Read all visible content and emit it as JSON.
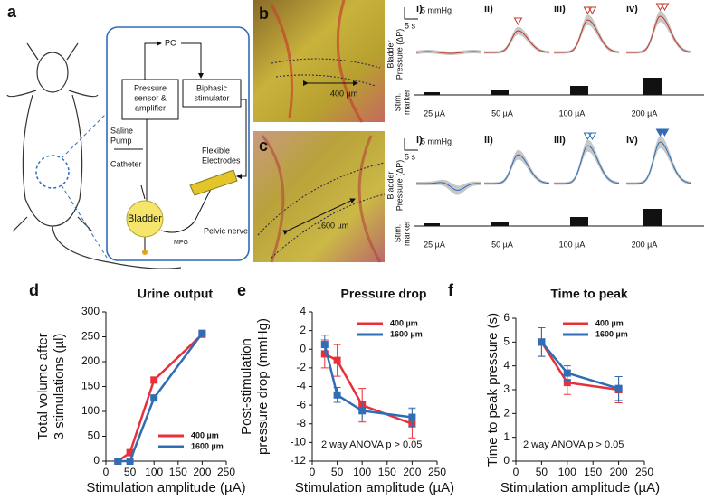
{
  "figure": {
    "panel_a": {
      "label": "a",
      "pc": "PC",
      "sensor": [
        "Pressure",
        "sensor &",
        "amplifier"
      ],
      "stimulator": [
        "Biphasic",
        "stimulator"
      ],
      "pump": [
        "Saline",
        "Pump"
      ],
      "catheter": "Catheter",
      "bladder": "Bladder",
      "electrodes": [
        "Flexible",
        "Electrodes"
      ],
      "nerve": "Pelvic nerve",
      "mpg": "MPG"
    },
    "panel_b": {
      "label": "b",
      "scale": "400 µm"
    },
    "panel_c": {
      "label": "c",
      "scale": "1600  µm"
    },
    "traces": [
      {
        "color": "#c0392b",
        "columns": [
          "i)",
          "ii)",
          "iii)",
          "iv)"
        ],
        "scale_y": "5 mmHg",
        "scale_x": "5 s",
        "ylabel": [
          "Bladder",
          "Pressure (ΔP)"
        ],
        "marker_label": [
          "Stim.",
          "marker"
        ],
        "amplitudes": [
          "25 µA",
          "50 µA",
          "100 µA",
          "200 µA"
        ]
      },
      {
        "color": "#2f6db5",
        "columns": [
          "i)",
          "ii)",
          "iii)",
          "iv)"
        ],
        "scale_y": "5 mmHg",
        "scale_x": "5 s",
        "ylabel": [
          "Bladder",
          "Pressure (ΔP)"
        ],
        "marker_label": [
          "Stim.",
          "marker"
        ],
        "amplitudes": [
          "25 µA",
          "50 µA",
          "100 µA",
          "200 µA"
        ]
      }
    ]
  },
  "chart_data": [
    {
      "type": "line",
      "panel": "d",
      "title": "Urine output",
      "xlabel": "Stimulation amplitude (µA)",
      "ylabel": [
        "Total volume after",
        "3 stimulations (µl)"
      ],
      "x": [
        25,
        50,
        100,
        200
      ],
      "xlim": [
        0,
        250
      ],
      "ylim": [
        0,
        300
      ],
      "xticks": [
        0,
        50,
        100,
        150,
        200,
        250
      ],
      "yticks": [
        0,
        50,
        100,
        150,
        200,
        250,
        300
      ],
      "series": [
        {
          "name": "400 µm",
          "color": "#e8303a",
          "values": [
            0,
            17,
            163,
            255
          ]
        },
        {
          "name": "1600 µm",
          "color": "#2f6db5",
          "values": [
            0,
            0,
            127,
            257
          ]
        }
      ]
    },
    {
      "type": "line",
      "panel": "e",
      "title": "Pressure drop",
      "xlabel": "Stimulation amplitude (µA)",
      "ylabel": [
        "Post-stimulation",
        "pressure drop (mmHg)"
      ],
      "annotation": "2 way ANOVA p > 0.05",
      "x": [
        25,
        50,
        100,
        200
      ],
      "xlim": [
        0,
        250
      ],
      "ylim": [
        -12,
        4
      ],
      "xticks": [
        0,
        50,
        100,
        150,
        200,
        250
      ],
      "yticks": [
        -12,
        -10,
        -8,
        -6,
        -4,
        -2,
        0,
        2,
        4
      ],
      "series": [
        {
          "name": "400 µm",
          "color": "#e8303a",
          "values": [
            -0.5,
            -1.2,
            -6,
            -8
          ],
          "errors": [
            1.5,
            1.7,
            1.8,
            1.5
          ]
        },
        {
          "name": "1600 µm",
          "color": "#2f6db5",
          "values": [
            0.5,
            -4.9,
            -6.6,
            -7.3
          ],
          "errors": [
            1,
            0.8,
            1,
            1
          ]
        }
      ]
    },
    {
      "type": "line",
      "panel": "f",
      "title": "Time to peak",
      "xlabel": "Stimulation amplitude (µA)",
      "ylabel": [
        "Time to peak pressure (s)"
      ],
      "annotation": "2 way ANOVA p > 0.05",
      "x": [
        50,
        100,
        200
      ],
      "xlim": [
        0,
        250
      ],
      "ylim": [
        0,
        6
      ],
      "xticks": [
        0,
        50,
        100,
        150,
        200,
        250
      ],
      "yticks": [
        0,
        1,
        2,
        3,
        4,
        5,
        6
      ],
      "series": [
        {
          "name": "400 µm",
          "color": "#e8303a",
          "values": [
            5,
            3.3,
            3
          ],
          "errors": [
            0.6,
            0.5,
            0.55
          ]
        },
        {
          "name": "1600 µm",
          "color": "#2f6db5",
          "values": [
            5,
            3.7,
            3.05
          ],
          "errors": [
            0.6,
            0.3,
            0.5
          ]
        }
      ]
    }
  ]
}
